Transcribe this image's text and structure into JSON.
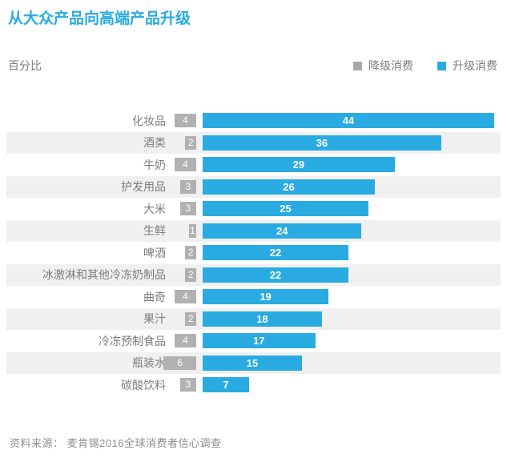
{
  "page": {
    "title": "从大众产品向高端产品升级",
    "unit_label": "百分比",
    "source": "资料来源： 麦肯锡2016全球消费者信心调查"
  },
  "legend": [
    {
      "label": "降级消费",
      "color": "#a9a9a9"
    },
    {
      "label": "升级消费",
      "color": "#29abe2"
    }
  ],
  "colors": {
    "title_blue": "#29abe2",
    "bar_blue": "#29abe2",
    "badge_gray": "#b1b1b1",
    "stripe_gray": "#f0f0f0",
    "text_gray": "#7d7d7d",
    "source_gray": "#8c8c8c",
    "value_text": "#ffffff"
  },
  "chart_data": {
    "type": "bar",
    "orientation": "horizontal",
    "title": "从大众产品向高端产品升级",
    "unit": "百分比",
    "categories": [
      "化妆品",
      "酒类",
      "牛奶",
      "护发用品",
      "大米",
      "生鲜",
      "啤酒",
      "冰激淋和其他冷冻奶制品",
      "曲奇",
      "果汁",
      "冷冻预制食品",
      "瓶装水",
      "碳酸饮料"
    ],
    "series": [
      {
        "name": "降级消费",
        "color": "#b1b1b1",
        "values": [
          4,
          2,
          4,
          3,
          3,
          1,
          2,
          2,
          4,
          2,
          4,
          6,
          3
        ]
      },
      {
        "name": "升级消费",
        "color": "#29abe2",
        "values": [
          44,
          36,
          29,
          26,
          25,
          24,
          22,
          22,
          19,
          18,
          17,
          15,
          7
        ]
      }
    ],
    "xlim": [
      0,
      45
    ],
    "value_labels": true,
    "legend_position": "top-right",
    "zebra_stripes": true,
    "source": "资料来源： 麦肯锡2016全球消费者信心调查"
  }
}
